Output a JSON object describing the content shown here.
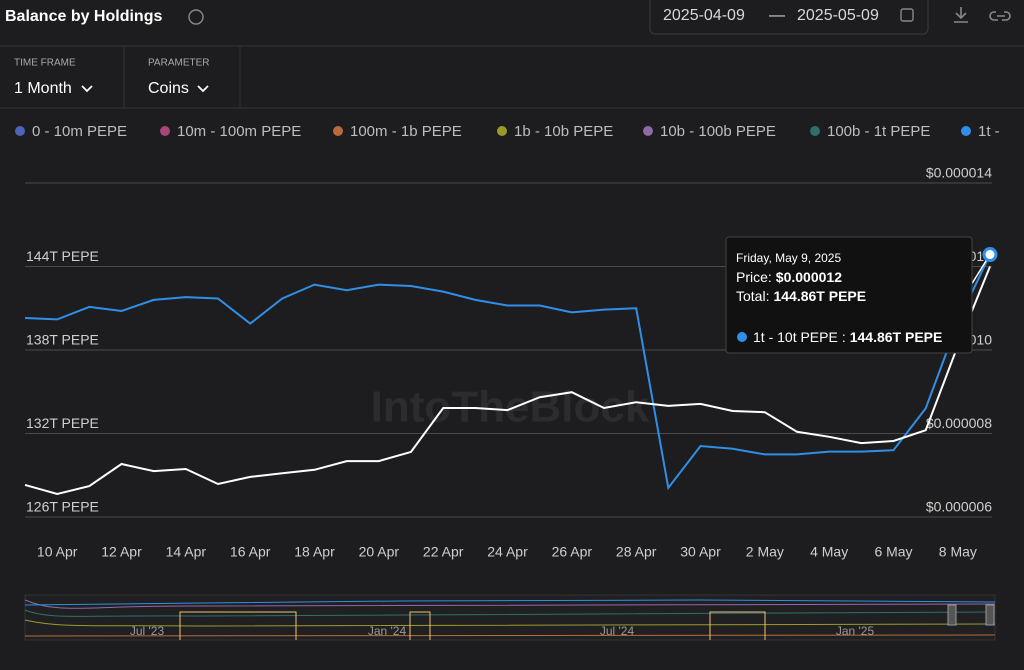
{
  "header": {
    "title": "Balance by Holdings",
    "date_from": "2025-04-09",
    "date_sep": "—",
    "date_to": "2025-05-09"
  },
  "controls": {
    "time_frame_label": "TIME FRAME",
    "time_frame_value": "1 Month",
    "parameter_label": "PARAMETER",
    "parameter_value": "Coins"
  },
  "legend": [
    {
      "name": "0 - 10m PEPE",
      "color": "#4d63b8"
    },
    {
      "name": "10m - 100m PEPE",
      "color": "#a8457a"
    },
    {
      "name": "100m - 1b PEPE",
      "color": "#b86a3d"
    },
    {
      "name": "1b - 10b PEPE",
      "color": "#9a9a2a"
    },
    {
      "name": "10b - 100b PEPE",
      "color": "#8e6aa8"
    },
    {
      "name": "100b - 1t PEPE",
      "color": "#2f6e6c"
    },
    {
      "name": "1t -",
      "color": "#2f8fe8"
    }
  ],
  "watermark": "IntoTheBlock",
  "navigator_labels": [
    "Jul '23",
    "Jan '24",
    "Jul '24",
    "Jan '25"
  ],
  "tooltip": {
    "date": "Friday, May 9, 2025",
    "price_label": "Price:",
    "price": "$0.000012",
    "total_label": "Total:",
    "total": "144.86T PEPE",
    "series": "1t - 10t PEPE",
    "sep": ":",
    "series_value": "144.86T PEPE"
  },
  "chart_data": {
    "type": "line",
    "categories": [
      null,
      "10 Apr",
      null,
      "12 Apr",
      null,
      "14 Apr",
      null,
      "16 Apr",
      null,
      "18 Apr",
      null,
      "20 Apr",
      null,
      "22 Apr",
      null,
      "24 Apr",
      null,
      "26 Apr",
      null,
      "28 Apr",
      null,
      "30 Apr",
      null,
      "2 May",
      null,
      "4 May",
      null,
      "6 May",
      null,
      "8 May",
      null
    ],
    "ylim": [
      126,
      150
    ],
    "yticks": [
      {
        "value": 126,
        "label": "126T PEPE"
      },
      {
        "value": 132,
        "label": "132T PEPE"
      },
      {
        "value": 138,
        "label": "138T PEPE"
      },
      {
        "value": 144,
        "label": "144T PEPE"
      }
    ],
    "y2lim": [
      6e-06,
      1.4e-05
    ],
    "y2ticks": [
      {
        "value": 6e-06,
        "label": "$0.000006"
      },
      {
        "value": 8e-06,
        "label": "$0.000008"
      },
      {
        "value": 1e-05,
        "label": "$0.000010"
      },
      {
        "value": 1.2e-05,
        "label": "$0.000012"
      },
      {
        "value": 1.4e-05,
        "label": "$0.000014"
      }
    ],
    "grid": true,
    "series": [
      {
        "name": "1t - 10t PEPE",
        "color": "#2f8fe8",
        "values": [
          140.3,
          140.2,
          141.1,
          140.8,
          141.6,
          141.8,
          141.7,
          139.9,
          141.7,
          142.7,
          142.3,
          142.7,
          142.6,
          142.2,
          141.6,
          141.2,
          141.2,
          140.7,
          140.9,
          141.0,
          128.1,
          131.1,
          130.9,
          130.5,
          130.5,
          130.7,
          130.7,
          130.8,
          133.8,
          140.0,
          144.86
        ]
      },
      {
        "name": "Price",
        "color": "#ffffff",
        "axis": "y2",
        "values": [
          6.77e-06,
          6.55e-06,
          6.74e-06,
          7.27e-06,
          7.1e-06,
          7.15e-06,
          6.79e-06,
          6.96e-06,
          7.05e-06,
          7.13e-06,
          7.34e-06,
          7.34e-06,
          7.56e-06,
          8.61e-06,
          8.61e-06,
          8.56e-06,
          8.87e-06,
          8.99e-06,
          8.61e-06,
          8.75e-06,
          8.66e-06,
          8.71e-06,
          8.54e-06,
          8.51e-06,
          8.04e-06,
          7.92e-06,
          7.77e-06,
          7.82e-06,
          8.08e-06,
          1.01e-05,
          1.2e-05
        ]
      }
    ]
  }
}
